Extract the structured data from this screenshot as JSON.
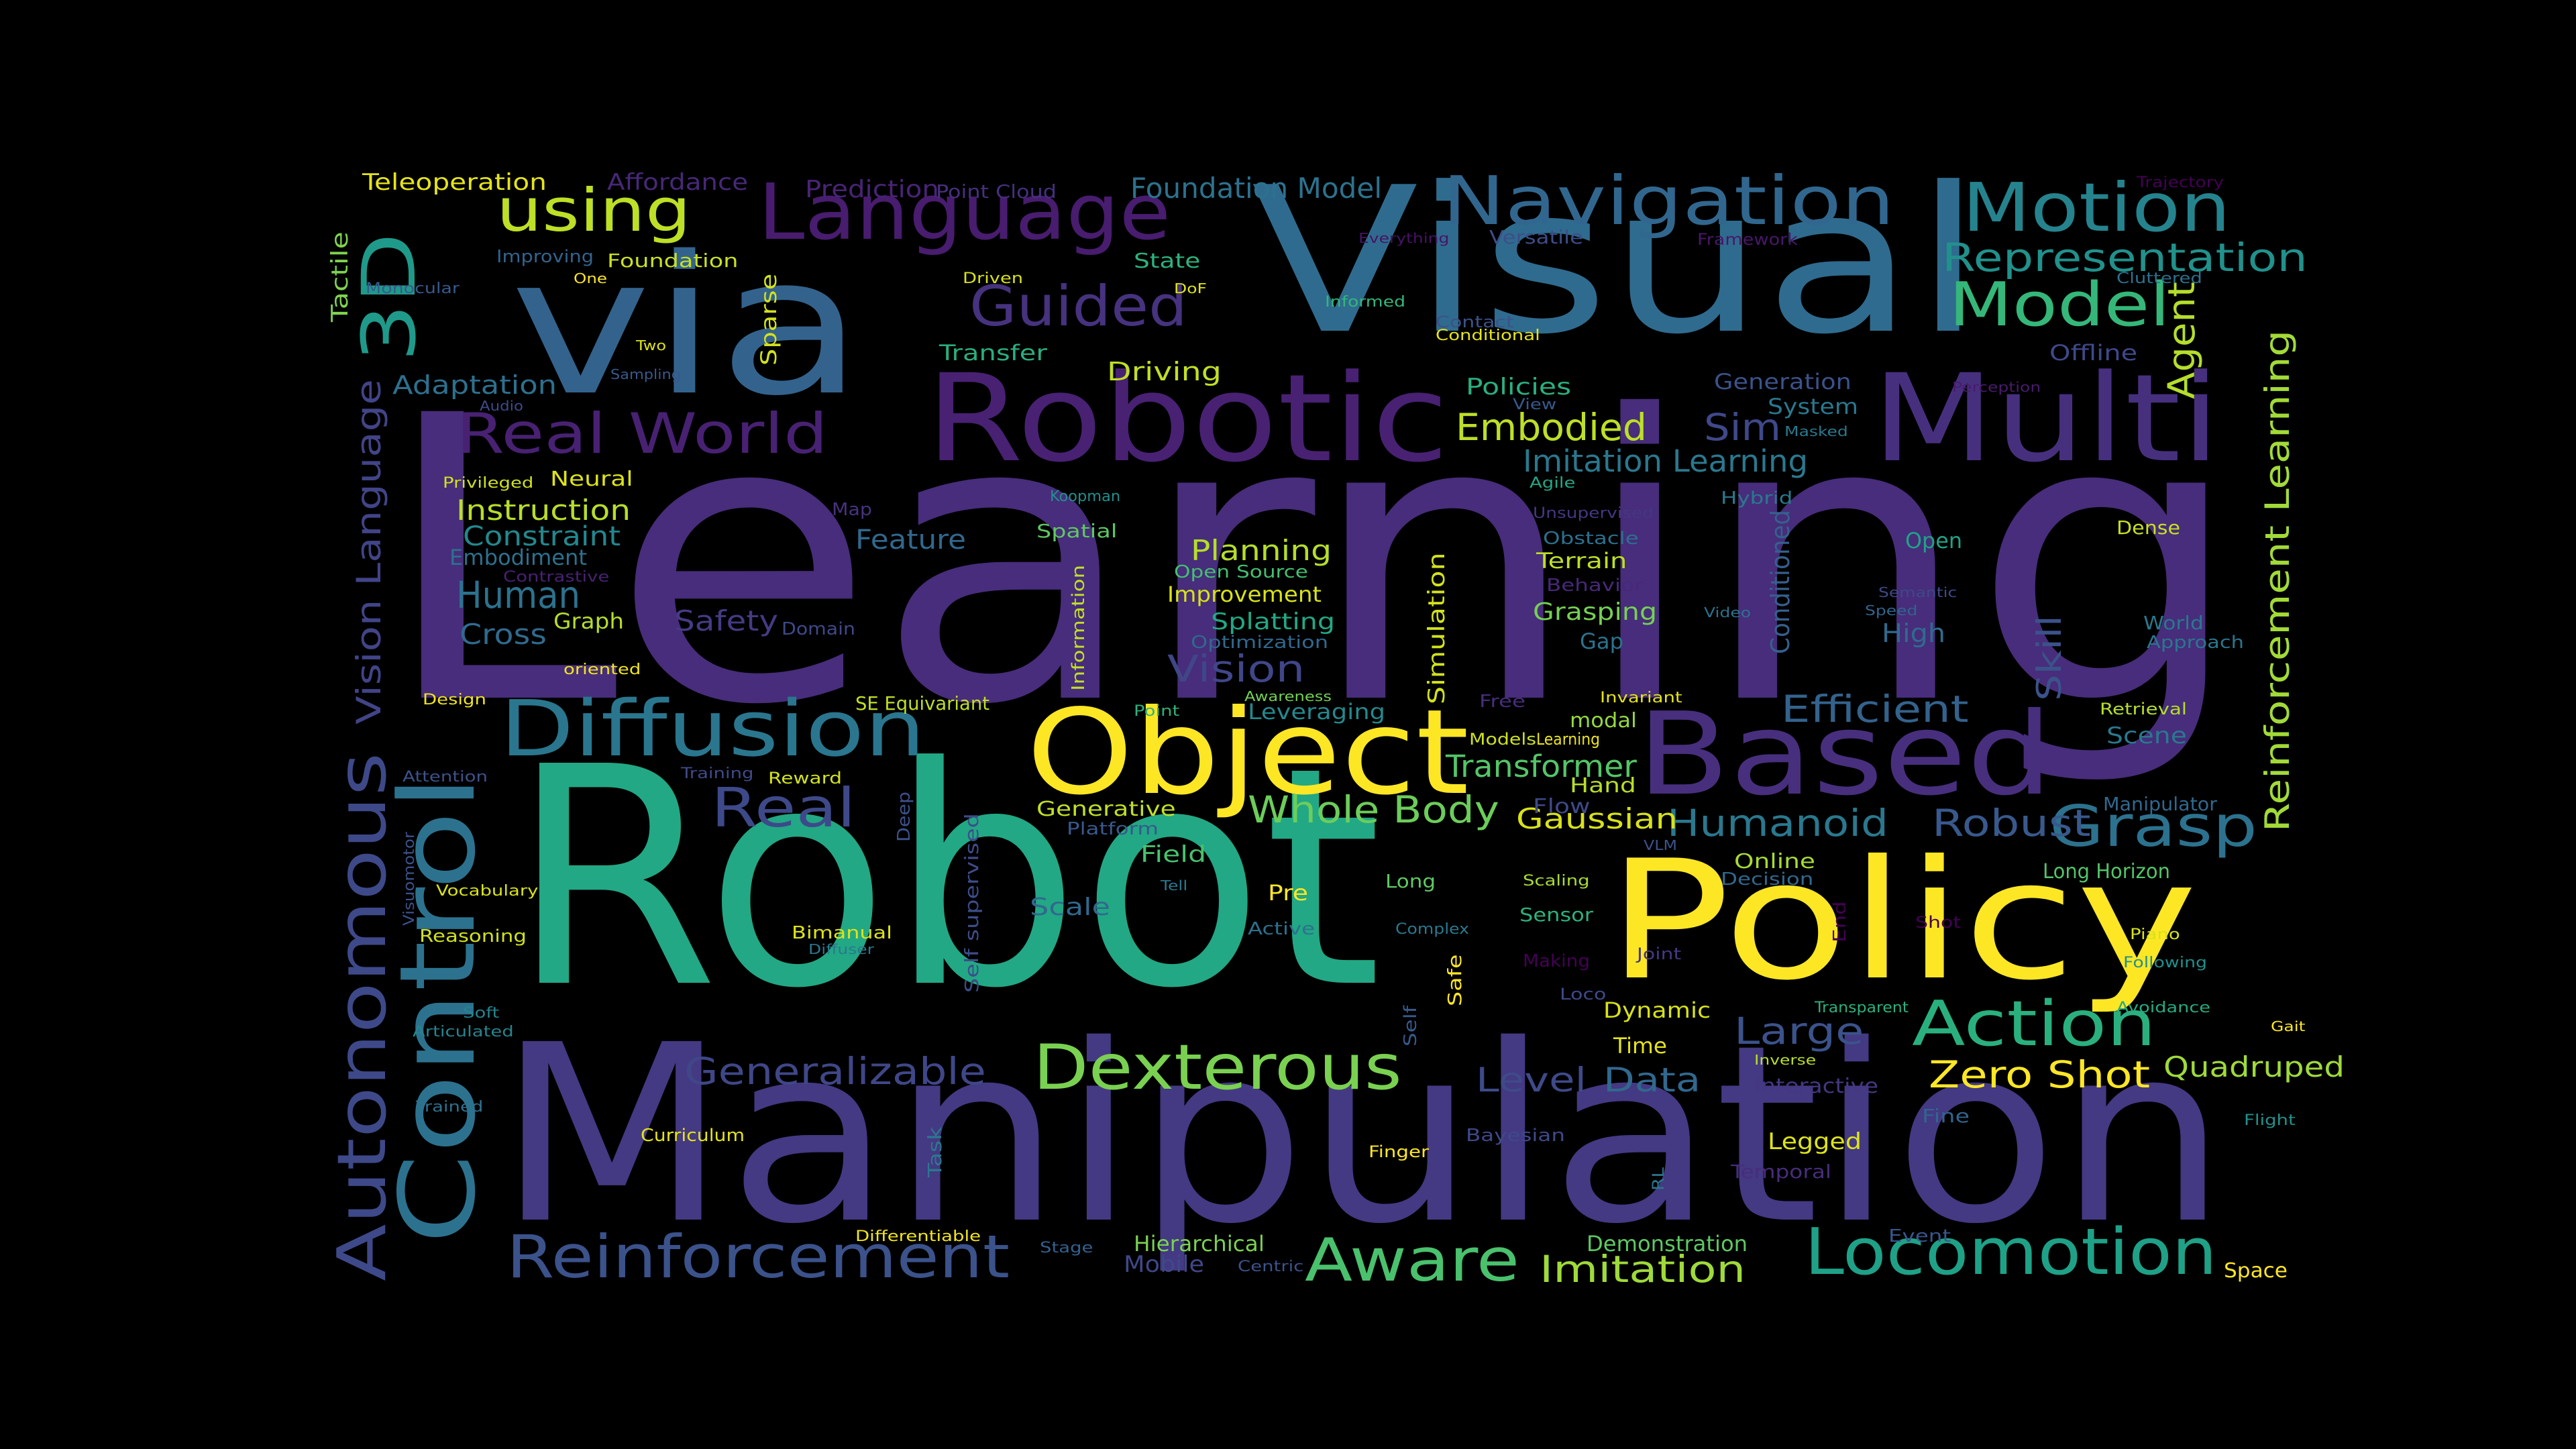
{
  "background": "#000000",
  "words": [
    {
      "text": "Learning",
      "color": "#472d7b"
    },
    {
      "text": "Robot",
      "color": "#22a884"
    },
    {
      "text": "Manipulation",
      "color": "#443983"
    },
    {
      "text": "Visual",
      "color": "#2f6b8e"
    },
    {
      "text": "via",
      "color": "#33638d"
    },
    {
      "text": "Policy",
      "color": "#fde725"
    },
    {
      "text": "Robotic",
      "color": "#482173"
    },
    {
      "text": "Multi",
      "color": "#46307e"
    },
    {
      "text": "Object",
      "color": "#fde725"
    },
    {
      "text": "Based",
      "color": "#472f7d"
    },
    {
      "text": "Control",
      "color": "#2c728e"
    },
    {
      "text": "Diffusion",
      "color": "#2a768e"
    },
    {
      "text": "Language",
      "color": "#481c6e"
    },
    {
      "text": "Navigation",
      "color": "#31678e"
    },
    {
      "text": "Motion",
      "color": "#25838e"
    },
    {
      "text": "3D",
      "color": "#1f9a8a"
    },
    {
      "text": "Locomotion",
      "color": "#1fa187"
    },
    {
      "text": "Reinforcement",
      "color": "#3b528b"
    },
    {
      "text": "Autonomous",
      "color": "#3e4989"
    },
    {
      "text": "Dexterous",
      "color": "#7ad151"
    },
    {
      "text": "Action",
      "color": "#2ab07f"
    },
    {
      "text": "Aware",
      "color": "#4ac16d"
    },
    {
      "text": "Grasp",
      "color": "#2c728e"
    },
    {
      "text": "Real World",
      "color": "#482173"
    },
    {
      "text": "Model",
      "color": "#35b779"
    },
    {
      "text": "Guided",
      "color": "#46327e"
    },
    {
      "text": "using",
      "color": "#bddf26"
    },
    {
      "text": "Representation",
      "color": "#21918c"
    },
    {
      "text": "Real",
      "color": "#3e4989"
    },
    {
      "text": "Zero Shot",
      "color": "#fde725"
    },
    {
      "text": "Whole Body",
      "color": "#6ccd5a"
    },
    {
      "text": "Humanoid",
      "color": "#2a788e"
    },
    {
      "text": "Robust",
      "color": "#38598c"
    },
    {
      "text": "Imitation",
      "color": "#9fda3a"
    },
    {
      "text": "Generalizable",
      "color": "#3f4788"
    },
    {
      "text": "Vision",
      "color": "#404688"
    },
    {
      "text": "Efficient",
      "color": "#33638d"
    },
    {
      "text": "Large",
      "color": "#3b528b"
    },
    {
      "text": "Data",
      "color": "#31688e"
    },
    {
      "text": "Level",
      "color": "#3e4a89"
    },
    {
      "text": "Human",
      "color": "#2c728e"
    },
    {
      "text": "Embodied",
      "color": "#bddf26"
    },
    {
      "text": "Sim",
      "color": "#3f4889"
    },
    {
      "text": "Agent",
      "color": "#b5de2b"
    },
    {
      "text": "Reinforcement Learning",
      "color": "#a2da37"
    },
    {
      "text": "Vision Language",
      "color": "#414487"
    },
    {
      "text": "Skill",
      "color": "#3b528b"
    },
    {
      "text": "Transformer",
      "color": "#54c568"
    },
    {
      "text": "Gaussian",
      "color": "#d8e219"
    },
    {
      "text": "Quadruped",
      "color": "#9fda3a"
    },
    {
      "text": "Foundation Model",
      "color": "#2c728e"
    },
    {
      "text": "Imitation Learning",
      "color": "#2a788e"
    },
    {
      "text": "Safety",
      "color": "#443b84"
    },
    {
      "text": "Cross",
      "color": "#306a8e"
    },
    {
      "text": "Instruction",
      "color": "#b8de29"
    },
    {
      "text": "Constraint",
      "color": "#23888e"
    },
    {
      "text": "Adaptation",
      "color": "#2d708e"
    },
    {
      "text": "Planning",
      "color": "#b5de2b"
    },
    {
      "text": "Feature",
      "color": "#31688e"
    },
    {
      "text": "Conditioned",
      "color": "#35608d"
    },
    {
      "text": "Reinforcement Learning",
      "color": "#a2da37"
    },
    {
      "text": "Teleoperation",
      "color": "#e5e419"
    },
    {
      "text": "Affordance",
      "color": "#472878"
    },
    {
      "text": "Prediction",
      "color": "#482475"
    },
    {
      "text": "Point Cloud",
      "color": "#46307e"
    },
    {
      "text": "Trajectory",
      "color": "#440154"
    },
    {
      "text": "Tactile",
      "color": "#7fd34e"
    },
    {
      "text": "Improving",
      "color": "#33638d"
    },
    {
      "text": "Foundation",
      "color": "#cae11f"
    },
    {
      "text": "Monocular",
      "color": "#38598c"
    },
    {
      "text": "One",
      "color": "#fde725"
    },
    {
      "text": "Driven",
      "color": "#d8e219"
    },
    {
      "text": "State",
      "color": "#2db27d"
    },
    {
      "text": "DoF",
      "color": "#dde318"
    },
    {
      "text": "Everything",
      "color": "#471365"
    },
    {
      "text": "Versatile",
      "color": "#3d4e8a"
    },
    {
      "text": "Framework",
      "color": "#481769"
    },
    {
      "text": "Cluttered",
      "color": "#2d708e"
    },
    {
      "text": "Informed",
      "color": "#32b67a"
    },
    {
      "text": "Contact",
      "color": "#3b528b"
    },
    {
      "text": "Conditional",
      "color": "#e5e419"
    },
    {
      "text": "Offline",
      "color": "#3e4989"
    },
    {
      "text": "Two",
      "color": "#dde318"
    },
    {
      "text": "Sparse",
      "color": "#d2e21b"
    },
    {
      "text": "Sampling",
      "color": "#38598c"
    },
    {
      "text": "Transfer",
      "color": "#29af7f"
    },
    {
      "text": "Driving",
      "color": "#c2df23"
    },
    {
      "text": "Policies",
      "color": "#2ab07f"
    },
    {
      "text": "Generation",
      "color": "#3b528b"
    },
    {
      "text": "System",
      "color": "#2a788e"
    },
    {
      "text": "Audio",
      "color": "#3e4a89"
    },
    {
      "text": "View",
      "color": "#38598c"
    },
    {
      "text": "Perception",
      "color": "#481b6d"
    },
    {
      "text": "Masked",
      "color": "#2a788e"
    },
    {
      "text": "Privileged",
      "color": "#d0e11c"
    },
    {
      "text": "Neural",
      "color": "#dde318"
    },
    {
      "text": "Koopman",
      "color": "#218f8d"
    },
    {
      "text": "Agile",
      "color": "#22a785"
    },
    {
      "text": "Hybrid",
      "color": "#2a788e"
    },
    {
      "text": "Map",
      "color": "#46327e"
    },
    {
      "text": "Spatial",
      "color": "#5ec962"
    },
    {
      "text": "Unsupervised",
      "color": "#453781"
    },
    {
      "text": "Obstacle",
      "color": "#2d708e"
    },
    {
      "text": "Open",
      "color": "#20a386"
    },
    {
      "text": "Dense",
      "color": "#c8e020"
    },
    {
      "text": "Embodiment",
      "color": "#2d718e"
    },
    {
      "text": "Contrastive",
      "color": "#482173"
    },
    {
      "text": "Open Source",
      "color": "#44bf70"
    },
    {
      "text": "Improvement",
      "color": "#d8e219"
    },
    {
      "text": "Terrain",
      "color": "#bddf26"
    },
    {
      "text": "Behavior",
      "color": "#482878"
    },
    {
      "text": "Semantic",
      "color": "#3e4989"
    },
    {
      "text": "Speed",
      "color": "#32648e"
    },
    {
      "text": "Simulation",
      "color": "#d2e21b"
    },
    {
      "text": "Information",
      "color": "#c2df23"
    },
    {
      "text": "Splatting",
      "color": "#22a884"
    },
    {
      "text": "Grasping",
      "color": "#75d054"
    },
    {
      "text": "Video",
      "color": "#2c728e"
    },
    {
      "text": "High",
      "color": "#306a8e"
    },
    {
      "text": "World",
      "color": "#2a788e"
    },
    {
      "text": "Approach",
      "color": "#2a768e"
    },
    {
      "text": "Graph",
      "color": "#b5de2b"
    },
    {
      "text": "Domain",
      "color": "#3e4989"
    },
    {
      "text": "Optimization",
      "color": "#31688e"
    },
    {
      "text": "Gap",
      "color": "#2c728e"
    },
    {
      "text": "oriented",
      "color": "#f1e51d"
    },
    {
      "text": "Design",
      "color": "#f1e51d"
    },
    {
      "text": "SE Equivariant",
      "color": "#c2df23"
    },
    {
      "text": "Point",
      "color": "#2db27d"
    },
    {
      "text": "Awareness",
      "color": "#73d056"
    },
    {
      "text": "Leveraging",
      "color": "#23898e"
    },
    {
      "text": "Free",
      "color": "#472d7b"
    },
    {
      "text": "Invariant",
      "color": "#e5e419"
    },
    {
      "text": "Retrieval",
      "color": "#b5de2b"
    },
    {
      "text": "modal",
      "color": "#95d840"
    },
    {
      "text": "Models",
      "color": "#cde11d"
    },
    {
      "text": "Learning",
      "color": "#ece51b"
    },
    {
      "text": "Scene",
      "color": "#2a788e"
    },
    {
      "text": "Attention",
      "color": "#3b528b"
    },
    {
      "text": "Training",
      "color": "#3e4a89"
    },
    {
      "text": "Reward",
      "color": "#d2e21b"
    },
    {
      "text": "Deep",
      "color": "#3b528b"
    },
    {
      "text": "Hand",
      "color": "#b8de29"
    },
    {
      "text": "Flow",
      "color": "#3e4989"
    },
    {
      "text": "Manipulator",
      "color": "#31688e"
    },
    {
      "text": "Generative",
      "color": "#c2df23"
    },
    {
      "text": "Platform",
      "color": "#38598c"
    },
    {
      "text": "Visuomotor",
      "color": "#3b528b"
    },
    {
      "text": "Field",
      "color": "#4ac16d"
    },
    {
      "text": "VLM",
      "color": "#3b528b"
    },
    {
      "text": "Online",
      "color": "#a8db34"
    },
    {
      "text": "Decision",
      "color": "#31688e"
    },
    {
      "text": "Long Horizon",
      "color": "#52c569"
    },
    {
      "text": "Vocabulary",
      "color": "#d8e219"
    },
    {
      "text": "Self supervised",
      "color": "#3d4d8a"
    },
    {
      "text": "Tell",
      "color": "#2a788e"
    },
    {
      "text": "Long",
      "color": "#5ec962"
    },
    {
      "text": "Scaling",
      "color": "#a8db34"
    },
    {
      "text": "Scale",
      "color": "#31688e"
    },
    {
      "text": "Pre",
      "color": "#fde725"
    },
    {
      "text": "Sensor",
      "color": "#2db27d"
    },
    {
      "text": "End",
      "color": "#440154"
    },
    {
      "text": "Reasoning",
      "color": "#d0e11c"
    },
    {
      "text": "Bimanual",
      "color": "#dde318"
    },
    {
      "text": "Diffuser",
      "color": "#2a788e"
    },
    {
      "text": "Active",
      "color": "#2d718e"
    },
    {
      "text": "Complex",
      "color": "#2a788e"
    },
    {
      "text": "Shot",
      "color": "#440154"
    },
    {
      "text": "Piano",
      "color": "#d8e219"
    },
    {
      "text": "Safe",
      "color": "#fde725"
    },
    {
      "text": "Making",
      "color": "#440154"
    },
    {
      "text": "Joint",
      "color": "#453781"
    },
    {
      "text": "Following",
      "color": "#218f8d"
    },
    {
      "text": "Soft",
      "color": "#25838e"
    },
    {
      "text": "Articulated",
      "color": "#25848e"
    },
    {
      "text": "Loco",
      "color": "#3e4989"
    },
    {
      "text": "Transparent",
      "color": "#2ab07f"
    },
    {
      "text": "Avoidance",
      "color": "#25ab82"
    },
    {
      "text": "Gait",
      "color": "#fde725"
    },
    {
      "text": "Self",
      "color": "#38598c"
    },
    {
      "text": "Dynamic",
      "color": "#d8e219"
    },
    {
      "text": "Time",
      "color": "#e5e419"
    },
    {
      "text": "Inverse",
      "color": "#b8de29"
    },
    {
      "text": "Interactive",
      "color": "#453781"
    },
    {
      "text": "Trained",
      "color": "#2d718e"
    },
    {
      "text": "Curriculum",
      "color": "#e5e419"
    },
    {
      "text": "Task",
      "color": "#2a788e"
    },
    {
      "text": "Bayesian",
      "color": "#3e4989"
    },
    {
      "text": "Fine",
      "color": "#32648e"
    },
    {
      "text": "Flight",
      "color": "#21918c"
    },
    {
      "text": "Finger",
      "color": "#fde725"
    },
    {
      "text": "RL",
      "color": "#2a768e"
    },
    {
      "text": "Legged",
      "color": "#dde318"
    },
    {
      "text": "Temporal",
      "color": "#472d7b"
    },
    {
      "text": "Differentiable",
      "color": "#f1e51d"
    },
    {
      "text": "Stage",
      "color": "#34608d"
    },
    {
      "text": "Hierarchical",
      "color": "#7ad151"
    },
    {
      "text": "Mobile",
      "color": "#3f4889"
    },
    {
      "text": "Centric",
      "color": "#3b528b"
    },
    {
      "text": "Demonstration",
      "color": "#5ec962"
    },
    {
      "text": "Event",
      "color": "#39568c"
    },
    {
      "text": "Space",
      "color": "#fde725"
    }
  ]
}
